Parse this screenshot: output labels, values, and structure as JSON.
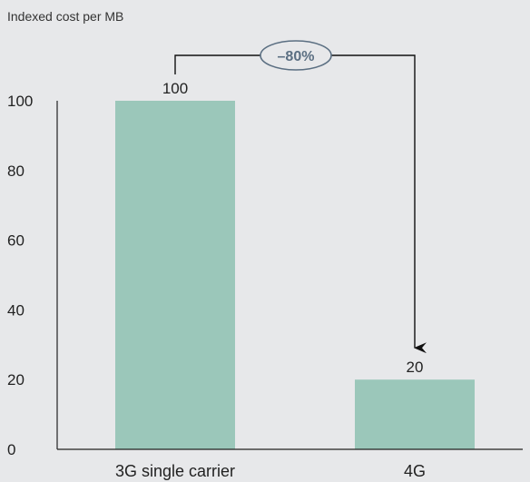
{
  "chart_data": {
    "type": "bar",
    "ylabel": "Indexed cost per MB",
    "categories": [
      "3G single carrier",
      "4G"
    ],
    "values": [
      100,
      20
    ],
    "value_labels": [
      "100",
      "20"
    ],
    "yticks": [
      0,
      20,
      40,
      60,
      80,
      100
    ],
    "ylim": [
      0,
      100
    ],
    "grid": false,
    "legend": "none",
    "bar_color": "#9bc7ba",
    "annotation": {
      "label": "–80%",
      "from_category": "3G single carrier",
      "to_category": "4G",
      "color": "#5b6f82"
    }
  }
}
